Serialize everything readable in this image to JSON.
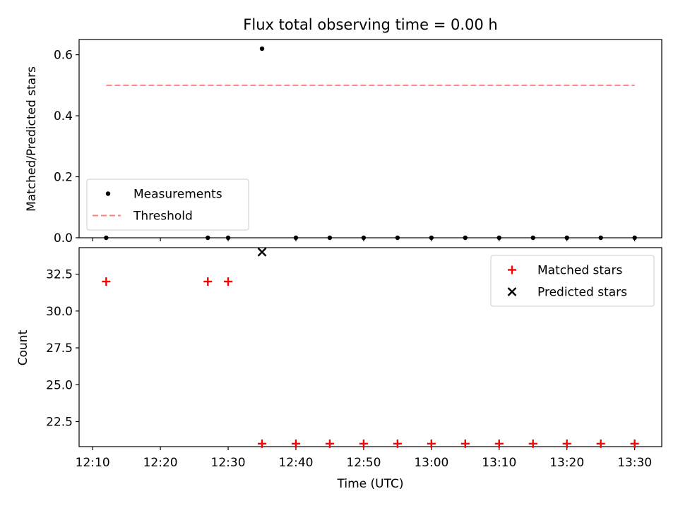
{
  "chart_data": [
    {
      "type": "scatter",
      "panel": "top",
      "title": "Flux total observing time = 0.00 h",
      "xlabel": "",
      "ylabel": "Matched/Predicted stars",
      "ylim": [
        0.0,
        0.65
      ],
      "yticks": [
        "0.0",
        "0.2",
        "0.4",
        "0.6"
      ],
      "xlim": [
        "12:08",
        "13:34"
      ],
      "grid": false,
      "legend_position": "lower-left",
      "series": [
        {
          "name": "Measurements",
          "kind": "scatter",
          "marker": "dot",
          "color": "#000000",
          "x": [
            "12:12",
            "12:27",
            "12:30",
            "12:35",
            "12:40",
            "12:45",
            "12:50",
            "12:55",
            "13:00",
            "13:05",
            "13:10",
            "13:15",
            "13:20",
            "13:25",
            "13:30"
          ],
          "y": [
            0.0,
            0.0,
            0.0,
            0.62,
            0.0,
            0.0,
            0.0,
            0.0,
            0.0,
            0.0,
            0.0,
            0.0,
            0.0,
            0.0,
            0.0
          ]
        },
        {
          "name": "Threshold",
          "kind": "line",
          "style": "dashed",
          "color": "#ff7f7f",
          "x": [
            "12:12",
            "13:30"
          ],
          "y": [
            0.5,
            0.5
          ]
        }
      ]
    },
    {
      "type": "scatter",
      "panel": "bottom",
      "title": "",
      "xlabel": "Time (UTC)",
      "ylabel": "Count",
      "ylim": [
        20.8,
        34.3
      ],
      "yticks": [
        "22.5",
        "25.0",
        "27.5",
        "30.0",
        "32.5"
      ],
      "xlim": [
        "12:08",
        "13:34"
      ],
      "xticks": [
        "12:10",
        "12:20",
        "12:30",
        "12:40",
        "12:50",
        "13:00",
        "13:10",
        "13:20",
        "13:30"
      ],
      "grid": false,
      "legend_position": "upper-right",
      "series": [
        {
          "name": "Matched stars",
          "kind": "scatter",
          "marker": "plus",
          "color": "#ff0000",
          "x": [
            "12:12",
            "12:27",
            "12:30",
            "12:35",
            "12:40",
            "12:45",
            "12:50",
            "12:55",
            "13:00",
            "13:05",
            "13:10",
            "13:15",
            "13:20",
            "13:25",
            "13:30"
          ],
          "y": [
            32,
            32,
            32,
            21,
            21,
            21,
            21,
            21,
            21,
            21,
            21,
            21,
            21,
            21,
            21
          ]
        },
        {
          "name": "Predicted stars",
          "kind": "scatter",
          "marker": "x",
          "color": "#000000",
          "x": [
            "12:35"
          ],
          "y": [
            34
          ]
        }
      ]
    }
  ]
}
